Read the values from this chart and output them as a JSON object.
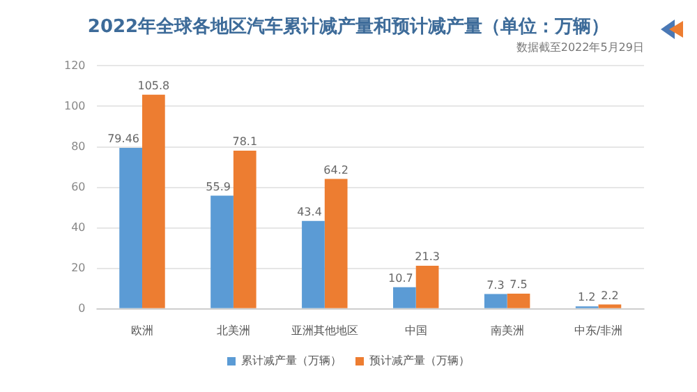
{
  "chart_data": {
    "type": "bar",
    "title": "2022年全球各地区汽车累计减产量和预计减产量（单位：万辆）",
    "subtitle": "数据截至2022年5月29日",
    "categories": [
      "欧洲",
      "北美洲",
      "亚洲其他地区",
      "中国",
      "南美洲",
      "中东/非洲"
    ],
    "series": [
      {
        "name": "累计减产量（万辆）",
        "color": "#5b9bd5",
        "values": [
          79.46,
          55.9,
          43.4,
          10.7,
          7.3,
          1.2
        ]
      },
      {
        "name": "预计减产量（万辆）",
        "color": "#ed7d31",
        "values": [
          105.8,
          78.1,
          64.2,
          21.3,
          7.5,
          2.2
        ]
      }
    ],
    "ylim": [
      0,
      120
    ],
    "yticks": [
      0,
      20,
      40,
      60,
      80,
      100,
      120
    ],
    "grid": "y",
    "legend": "bottom",
    "data_labels": true
  }
}
